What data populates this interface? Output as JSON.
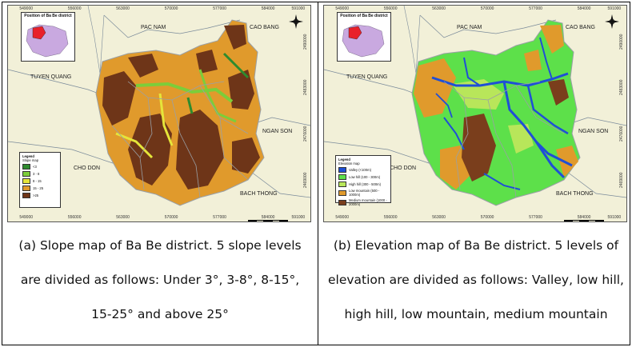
{
  "panel_a": {
    "x_ticks": [
      "549000",
      "556000",
      "563000",
      "570000",
      "577000",
      "584000",
      "591000"
    ],
    "y_ticks": [
      "2490000",
      "2483000",
      "2476000",
      "2469000"
    ],
    "inset_title": "Position of Ba Be district",
    "regions": {
      "pac_nam": "PAC NAM",
      "cao_bang": "CAO BANG",
      "tuyen_quang": "TUYEN QUANG",
      "ngan_son": "NGAN SON",
      "cho_don": "CHO DON",
      "bach_thong": "BACH THONG"
    },
    "legend_title": "Legend",
    "legend_subtitle": "Slope map",
    "legend": [
      {
        "label": "<3",
        "color": "#2e8b2e"
      },
      {
        "label": "3 - 8",
        "color": "#7ccd3a"
      },
      {
        "label": "8 - 15",
        "color": "#e5e53a"
      },
      {
        "label": "15 - 25",
        "color": "#e09a2c"
      },
      {
        "label": ">25",
        "color": "#6e3518"
      }
    ],
    "caption": [
      "(a) Slope map of Ba Be district. 5 slope levels",
      "are divided as follows: Under 3°, 3-8°, 8-15°,",
      "15-25° and above 25°"
    ]
  },
  "panel_b": {
    "x_ticks": [
      "549000",
      "556000",
      "563000",
      "570000",
      "577000",
      "584000",
      "591000"
    ],
    "y_ticks": [
      "2490000",
      "2483000",
      "2476000",
      "2469000"
    ],
    "inset_title": "Position of Ba Be district",
    "regions": {
      "pac_nam": "PAC NAM",
      "cao_bang": "CAO BANG",
      "tuyen_quang": "TUYEN QUANG",
      "ngan_son": "NGAN SON",
      "cho_don": "CHO DON",
      "bach_thong": "BACH THONG"
    },
    "legend_title": "Legend",
    "legend_subtitle": "Elevation map",
    "legend": [
      {
        "label": "Valley (<100m)",
        "color": "#1f4fd6"
      },
      {
        "label": "Low hill (100 - 300m)",
        "color": "#5de04a"
      },
      {
        "label": "High hill (300 - 500m)",
        "color": "#b8e65a"
      },
      {
        "label": "Low mountain (500 - 1000m)",
        "color": "#e09a2c"
      },
      {
        "label": "Medium mountain (1000 - 2000m)",
        "color": "#7a3e1c"
      }
    ],
    "caption": [
      "(b) Elevation map of Ba Be district. 5 levels of",
      "elevation are divided as follows: Valley, low hill,",
      "high hill, low mountain, medium mountain"
    ]
  },
  "colors": {
    "surround": "#f2f0d8",
    "neighbor_line": "#7a8a9a",
    "boundary": "#9aa0a6",
    "inset_district": "#e8202a",
    "inset_province": "#c9a9e0"
  },
  "icons": [
    "north-arrow-icon",
    "scale-bar-icon"
  ]
}
